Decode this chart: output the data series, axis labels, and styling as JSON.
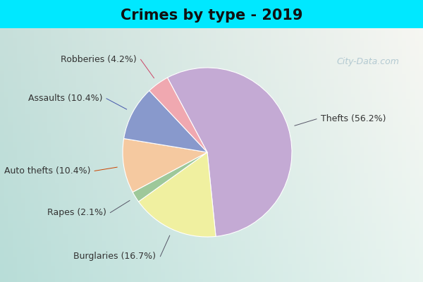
{
  "title": "Crimes by type - 2019",
  "labels": [
    "Thefts",
    "Burglaries",
    "Rapes",
    "Auto thefts",
    "Assaults",
    "Robberies"
  ],
  "values": [
    56.2,
    16.7,
    2.1,
    10.4,
    10.4,
    4.2
  ],
  "colors": [
    "#c4aad4",
    "#f0f0a0",
    "#9ec89a",
    "#f5c9a0",
    "#8899cc",
    "#f0a8b0"
  ],
  "label_texts": [
    "Thefts (56.2%)",
    "Burglaries (16.7%)",
    "Rapes (2.1%)",
    "Auto thefts (10.4%)",
    "Assaults (10.4%)",
    "Robberies (4.2%)"
  ],
  "bg_top": "#00e8ff",
  "bg_inner": "#d8ede8",
  "title_fontsize": 15,
  "label_fontsize": 9,
  "startangle": 118.1,
  "watermark": "City-Data.com"
}
